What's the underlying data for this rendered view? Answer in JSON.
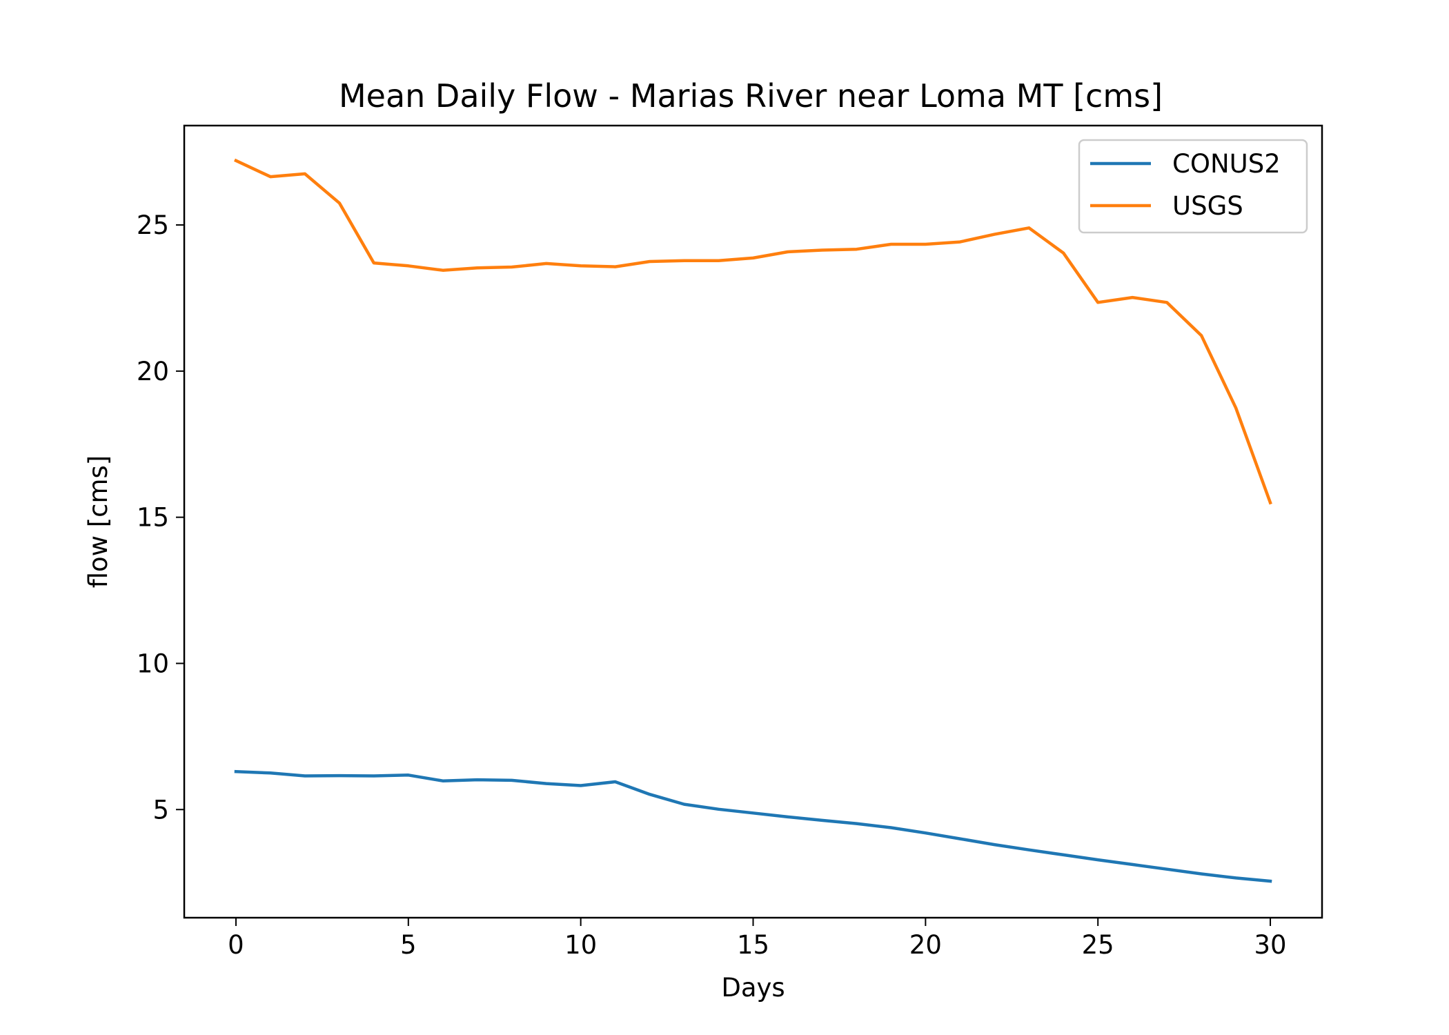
{
  "chart_data": {
    "type": "line",
    "title": "Mean Daily Flow - Marias River near Loma MT [cms]",
    "xlabel": "Days",
    "ylabel": "flow [cms]",
    "xlim": [
      -1.5,
      31.5
    ],
    "ylim": [
      1.3,
      28.4
    ],
    "xticks": [
      0,
      5,
      10,
      15,
      20,
      25,
      30
    ],
    "yticks": [
      5,
      10,
      15,
      20,
      25
    ],
    "grid": false,
    "legend_position": "top-right",
    "x": [
      0,
      1,
      2,
      3,
      4,
      5,
      6,
      7,
      8,
      9,
      10,
      11,
      12,
      13,
      14,
      15,
      16,
      17,
      18,
      19,
      20,
      21,
      22,
      23,
      24,
      25,
      26,
      27,
      28,
      29,
      30
    ],
    "series": [
      {
        "name": "CONUS2",
        "color": "#1f77b4",
        "values": [
          6.3,
          6.25,
          6.15,
          6.16,
          6.15,
          6.18,
          5.98,
          6.02,
          6.0,
          5.89,
          5.82,
          5.95,
          5.52,
          5.18,
          5.01,
          4.88,
          4.75,
          4.63,
          4.52,
          4.38,
          4.2,
          4.0,
          3.8,
          3.62,
          3.45,
          3.28,
          3.12,
          2.96,
          2.8,
          2.66,
          2.55
        ]
      },
      {
        "name": "USGS",
        "color": "#ff7f0e",
        "values": [
          27.2,
          26.65,
          26.75,
          25.75,
          23.7,
          23.6,
          23.45,
          23.53,
          23.56,
          23.68,
          23.6,
          23.57,
          23.75,
          23.78,
          23.78,
          23.87,
          24.08,
          24.14,
          24.17,
          24.34,
          24.34,
          24.42,
          24.68,
          24.9,
          24.04,
          22.35,
          22.52,
          22.35,
          21.22,
          18.74,
          15.5
        ]
      }
    ]
  }
}
